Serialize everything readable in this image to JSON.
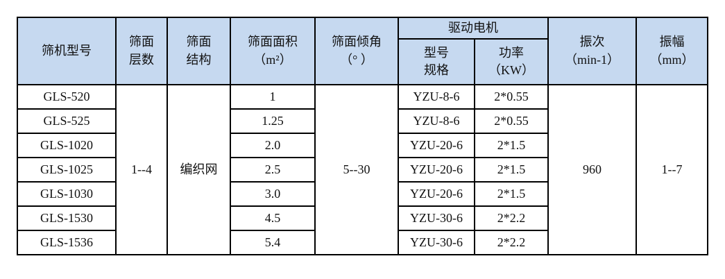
{
  "header": {
    "model": "筛机型号",
    "layers": [
      "筛面",
      "层数"
    ],
    "structure": [
      "筛面",
      "结构"
    ],
    "area": [
      "筛面面积",
      "（m²）"
    ],
    "angle": [
      "筛面倾角",
      "（°  ）"
    ],
    "motor": "驱动电机",
    "motor_model": [
      "型号",
      "规格"
    ],
    "motor_power": [
      "功率",
      "（KW）"
    ],
    "frequency": [
      "振次",
      "（min-1）"
    ],
    "amplitude": [
      "振幅",
      "（mm）"
    ]
  },
  "merged": {
    "layers": "1--4",
    "structure": "编织网",
    "angle": "5--30",
    "frequency": "960",
    "amplitude": "1--7"
  },
  "rows": [
    {
      "model": "GLS-520",
      "area": "1",
      "motor_model": "YZU-8-6",
      "power": "2*0.55"
    },
    {
      "model": "GLS-525",
      "area": "1.25",
      "motor_model": "YZU-8-6",
      "power": "2*0.55"
    },
    {
      "model": "GLS-1020",
      "area": "2.0",
      "motor_model": "YZU-20-6",
      "power": "2*1.5"
    },
    {
      "model": "GLS-1025",
      "area": "2.5",
      "motor_model": "YZU-20-6",
      "power": "2*1.5"
    },
    {
      "model": "GLS-1030",
      "area": "3.0",
      "motor_model": "YZU-20-6",
      "power": "2*1.5"
    },
    {
      "model": "GLS-1530",
      "area": "4.5",
      "motor_model": "YZU-30-6",
      "power": "2*2.2"
    },
    {
      "model": "GLS-1536",
      "area": "5.4",
      "motor_model": "YZU-30-6",
      "power": "2*2.2"
    }
  ],
  "colors": {
    "header_bg": "#c6d9f0",
    "border": "#000000"
  }
}
